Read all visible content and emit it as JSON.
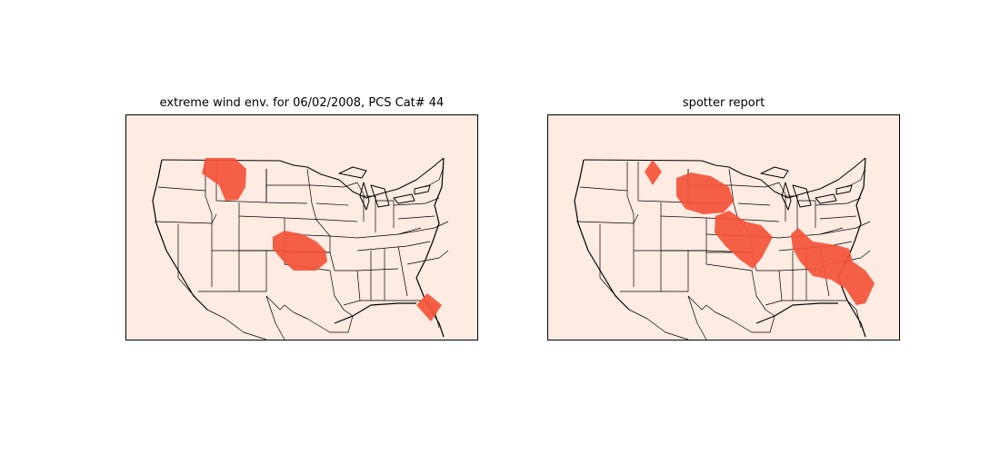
{
  "colors": {
    "background": "#feebe2",
    "region_fill": "#f45338",
    "border_line": "#000000"
  },
  "panels": [
    {
      "id": "left",
      "title": "extreme wind env. for 06/02/2008, PCS Cat# 44"
    },
    {
      "id": "right",
      "title": "spotter report"
    }
  ]
}
